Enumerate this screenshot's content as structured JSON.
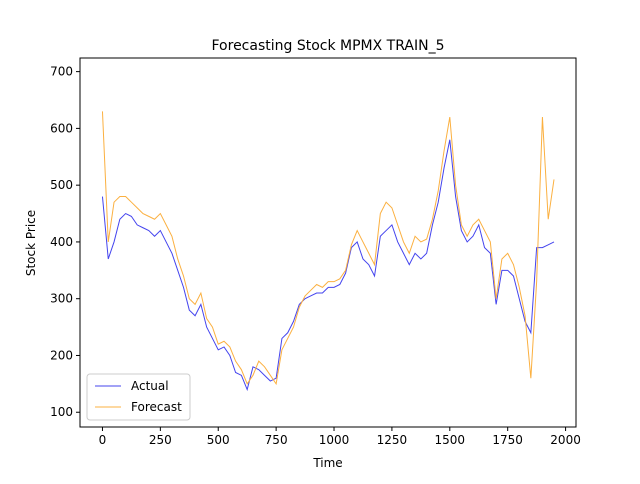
{
  "chart_data": {
    "type": "line",
    "title": "Forecasting Stock MPMX TRAIN_5",
    "x_label": "Time",
    "y_label": "Stock Price",
    "x": [
      0,
      25,
      50,
      75,
      100,
      125,
      150,
      175,
      200,
      225,
      250,
      275,
      300,
      325,
      350,
      375,
      400,
      425,
      450,
      475,
      500,
      525,
      550,
      575,
      600,
      625,
      650,
      675,
      700,
      725,
      750,
      775,
      800,
      825,
      850,
      875,
      900,
      925,
      950,
      975,
      1000,
      1025,
      1050,
      1075,
      1100,
      1125,
      1150,
      1175,
      1200,
      1225,
      1250,
      1275,
      1300,
      1325,
      1350,
      1375,
      1400,
      1425,
      1450,
      1475,
      1500,
      1525,
      1550,
      1575,
      1600,
      1625,
      1650,
      1675,
      1700,
      1725,
      1750,
      1775,
      1800,
      1825,
      1850,
      1875,
      1900,
      1925,
      1950
    ],
    "series": [
      {
        "name": "Actual",
        "color": "#4444ee",
        "values": [
          480,
          370,
          400,
          440,
          450,
          445,
          430,
          425,
          420,
          410,
          420,
          400,
          380,
          350,
          320,
          280,
          270,
          290,
          250,
          230,
          210,
          215,
          200,
          170,
          165,
          140,
          180,
          175,
          165,
          155,
          160,
          230,
          240,
          260,
          290,
          300,
          305,
          310,
          310,
          320,
          320,
          325,
          345,
          390,
          400,
          370,
          360,
          340,
          410,
          420,
          430,
          400,
          380,
          360,
          380,
          370,
          380,
          430,
          470,
          530,
          580,
          480,
          420,
          400,
          410,
          430,
          390,
          380,
          290,
          350,
          350,
          340,
          300,
          260,
          240,
          390,
          390,
          395,
          400
        ]
      },
      {
        "name": "Forecast",
        "color": "#fbb040",
        "values": [
          630,
          400,
          470,
          480,
          480,
          470,
          460,
          450,
          445,
          440,
          450,
          430,
          410,
          370,
          340,
          300,
          290,
          310,
          265,
          250,
          220,
          225,
          215,
          190,
          175,
          150,
          165,
          190,
          180,
          165,
          150,
          210,
          230,
          250,
          285,
          305,
          315,
          325,
          320,
          330,
          330,
          335,
          350,
          395,
          420,
          400,
          380,
          360,
          450,
          470,
          460,
          430,
          400,
          380,
          410,
          400,
          405,
          440,
          490,
          560,
          620,
          500,
          430,
          410,
          430,
          440,
          420,
          400,
          300,
          370,
          380,
          360,
          320,
          270,
          160,
          330,
          620,
          440,
          510
        ]
      }
    ],
    "xlim": [
      -97,
      2045
    ],
    "ylim": [
      74,
      724
    ],
    "xticks": [
      0,
      250,
      500,
      750,
      1000,
      1250,
      1500,
      1750,
      2000
    ],
    "yticks": [
      100,
      200,
      300,
      400,
      500,
      600,
      700
    ],
    "legend": "lower left"
  }
}
